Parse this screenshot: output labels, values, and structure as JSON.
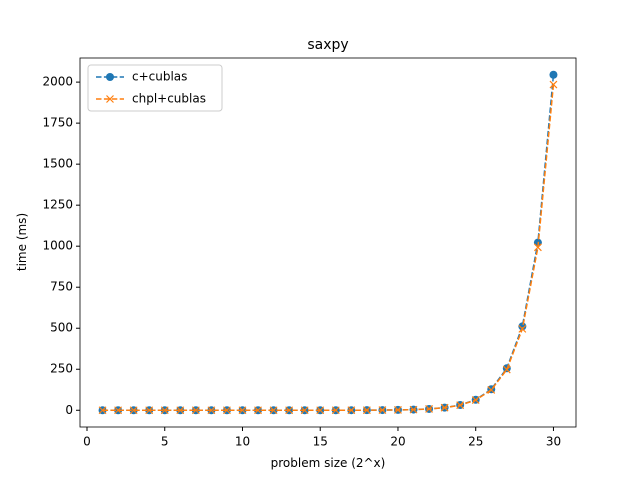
{
  "chart_data": {
    "type": "line",
    "title": "saxpy",
    "x_label": "problem size (2^x)",
    "y_label": "time (ms)",
    "x": [
      1,
      2,
      3,
      4,
      5,
      6,
      7,
      8,
      9,
      10,
      11,
      12,
      13,
      14,
      15,
      16,
      17,
      18,
      19,
      20,
      21,
      22,
      23,
      24,
      25,
      26,
      27,
      28,
      29,
      30
    ],
    "series": [
      {
        "name": "c+cublas",
        "color": "#1f77b4",
        "marker": "o",
        "values": [
          0.01,
          0.01,
          0.01,
          0.01,
          0.01,
          0.01,
          0.01,
          0.01,
          0.01,
          0.01,
          0.01,
          0.01,
          0.02,
          0.03,
          0.06,
          0.12,
          0.25,
          0.5,
          1,
          2,
          4,
          8,
          16,
          32,
          64,
          128,
          256,
          511,
          1022,
          2045
        ]
      },
      {
        "name": "chpl+cublas",
        "color": "#ff7f0e",
        "marker": "x",
        "values": [
          0.01,
          0.01,
          0.01,
          0.01,
          0.01,
          0.01,
          0.01,
          0.01,
          0.01,
          0.01,
          0.01,
          0.01,
          0.02,
          0.03,
          0.06,
          0.12,
          0.24,
          0.48,
          0.97,
          1.9,
          3.9,
          7.8,
          15.5,
          31,
          62,
          124,
          248,
          496,
          993,
          1985
        ]
      }
    ],
    "xlim": [
      -0.45,
      31.45
    ],
    "xticks": [
      0,
      5,
      10,
      15,
      20,
      25,
      30
    ],
    "ylim": [
      -102,
      2147
    ],
    "yticks": [
      0,
      250,
      500,
      750,
      1000,
      1250,
      1500,
      1750,
      2000
    ],
    "legend": "upper left"
  }
}
